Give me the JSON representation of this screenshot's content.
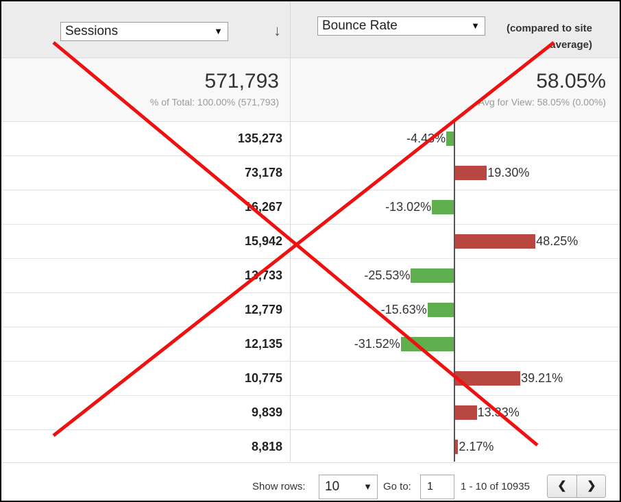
{
  "header": {
    "sessions_select": "Sessions",
    "bounce_select": "Bounce Rate",
    "compared_line1": "(compared to site",
    "compared_line2": "average)"
  },
  "summary": {
    "sessions_total": "571,793",
    "sessions_sub": "% of Total: 100.00% (571,793)",
    "bounce_total": "58.05%",
    "bounce_sub": "Avg for View: 58.05% (0.00%)"
  },
  "rows": [
    {
      "sessions": "135,273",
      "bounce_delta": -4.43,
      "label": "-4.43%"
    },
    {
      "sessions": "73,178",
      "bounce_delta": 19.3,
      "label": "19.30%"
    },
    {
      "sessions": "16,267",
      "bounce_delta": -13.02,
      "label": "-13.02%"
    },
    {
      "sessions": "15,942",
      "bounce_delta": 48.25,
      "label": "48.25%"
    },
    {
      "sessions": "13,733",
      "bounce_delta": -25.53,
      "label": "-25.53%"
    },
    {
      "sessions": "12,779",
      "bounce_delta": -15.63,
      "label": "-15.63%"
    },
    {
      "sessions": "12,135",
      "bounce_delta": -31.52,
      "label": "-31.52%"
    },
    {
      "sessions": "10,775",
      "bounce_delta": 39.21,
      "label": "39.21%"
    },
    {
      "sessions": "9,839",
      "bounce_delta": 13.33,
      "label": "13.33%"
    },
    {
      "sessions": "8,818",
      "bounce_delta": 2.17,
      "label": "2.17%"
    }
  ],
  "footer": {
    "show_rows_label": "Show rows:",
    "rows_value": "10",
    "goto_label": "Go to:",
    "goto_value": "1",
    "range_text": "1 - 10 of 10935"
  },
  "colors": {
    "positive": "#b94741",
    "negative": "#5fae4f",
    "cross": "#ee1111"
  },
  "icons": {
    "sort": "arrow-down-icon",
    "prev": "chevron-left-icon",
    "next": "chevron-right-icon"
  }
}
